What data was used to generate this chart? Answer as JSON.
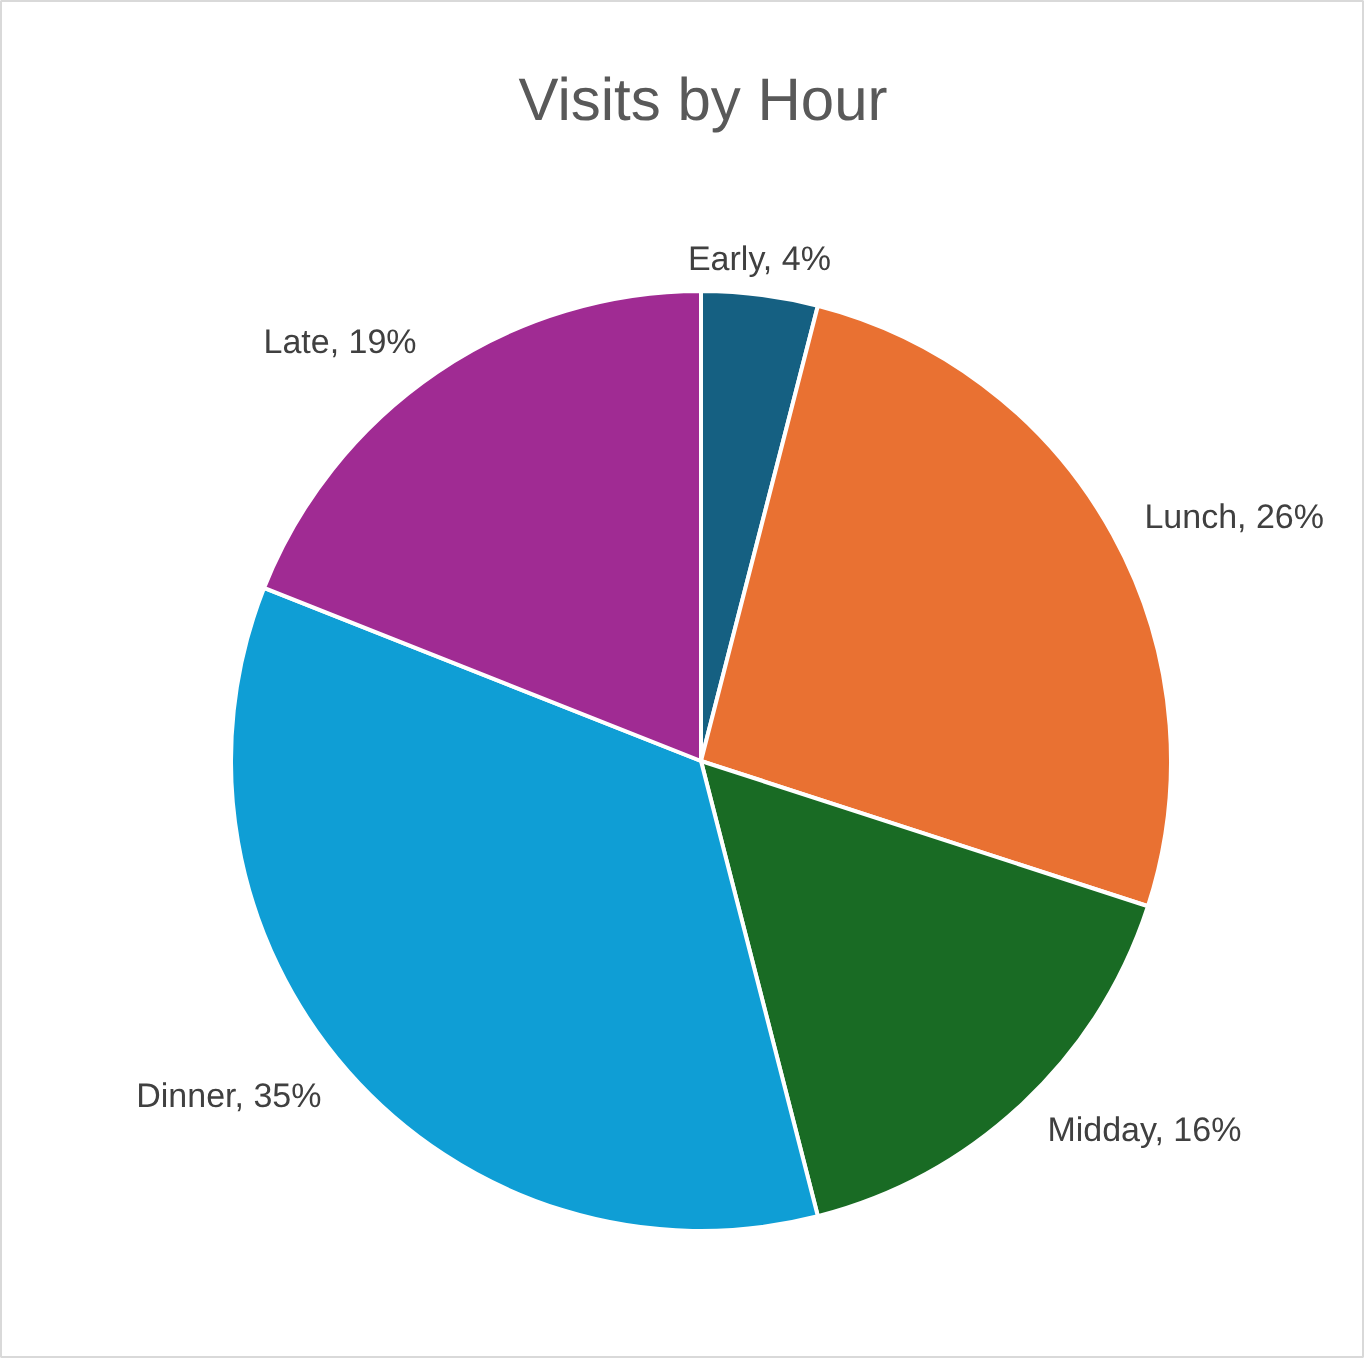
{
  "chart_data": {
    "type": "pie",
    "title": "Visits by Hour",
    "categories": [
      "Early",
      "Lunch",
      "Midday",
      "Dinner",
      "Late"
    ],
    "values": [
      4,
      26,
      16,
      35,
      19
    ],
    "colors": [
      "#156082",
      "#e97132",
      "#196b24",
      "#0f9ed5",
      "#a02b93"
    ],
    "value_labels": [
      "4%",
      "26%",
      "16%",
      "35%",
      "19%"
    ]
  }
}
